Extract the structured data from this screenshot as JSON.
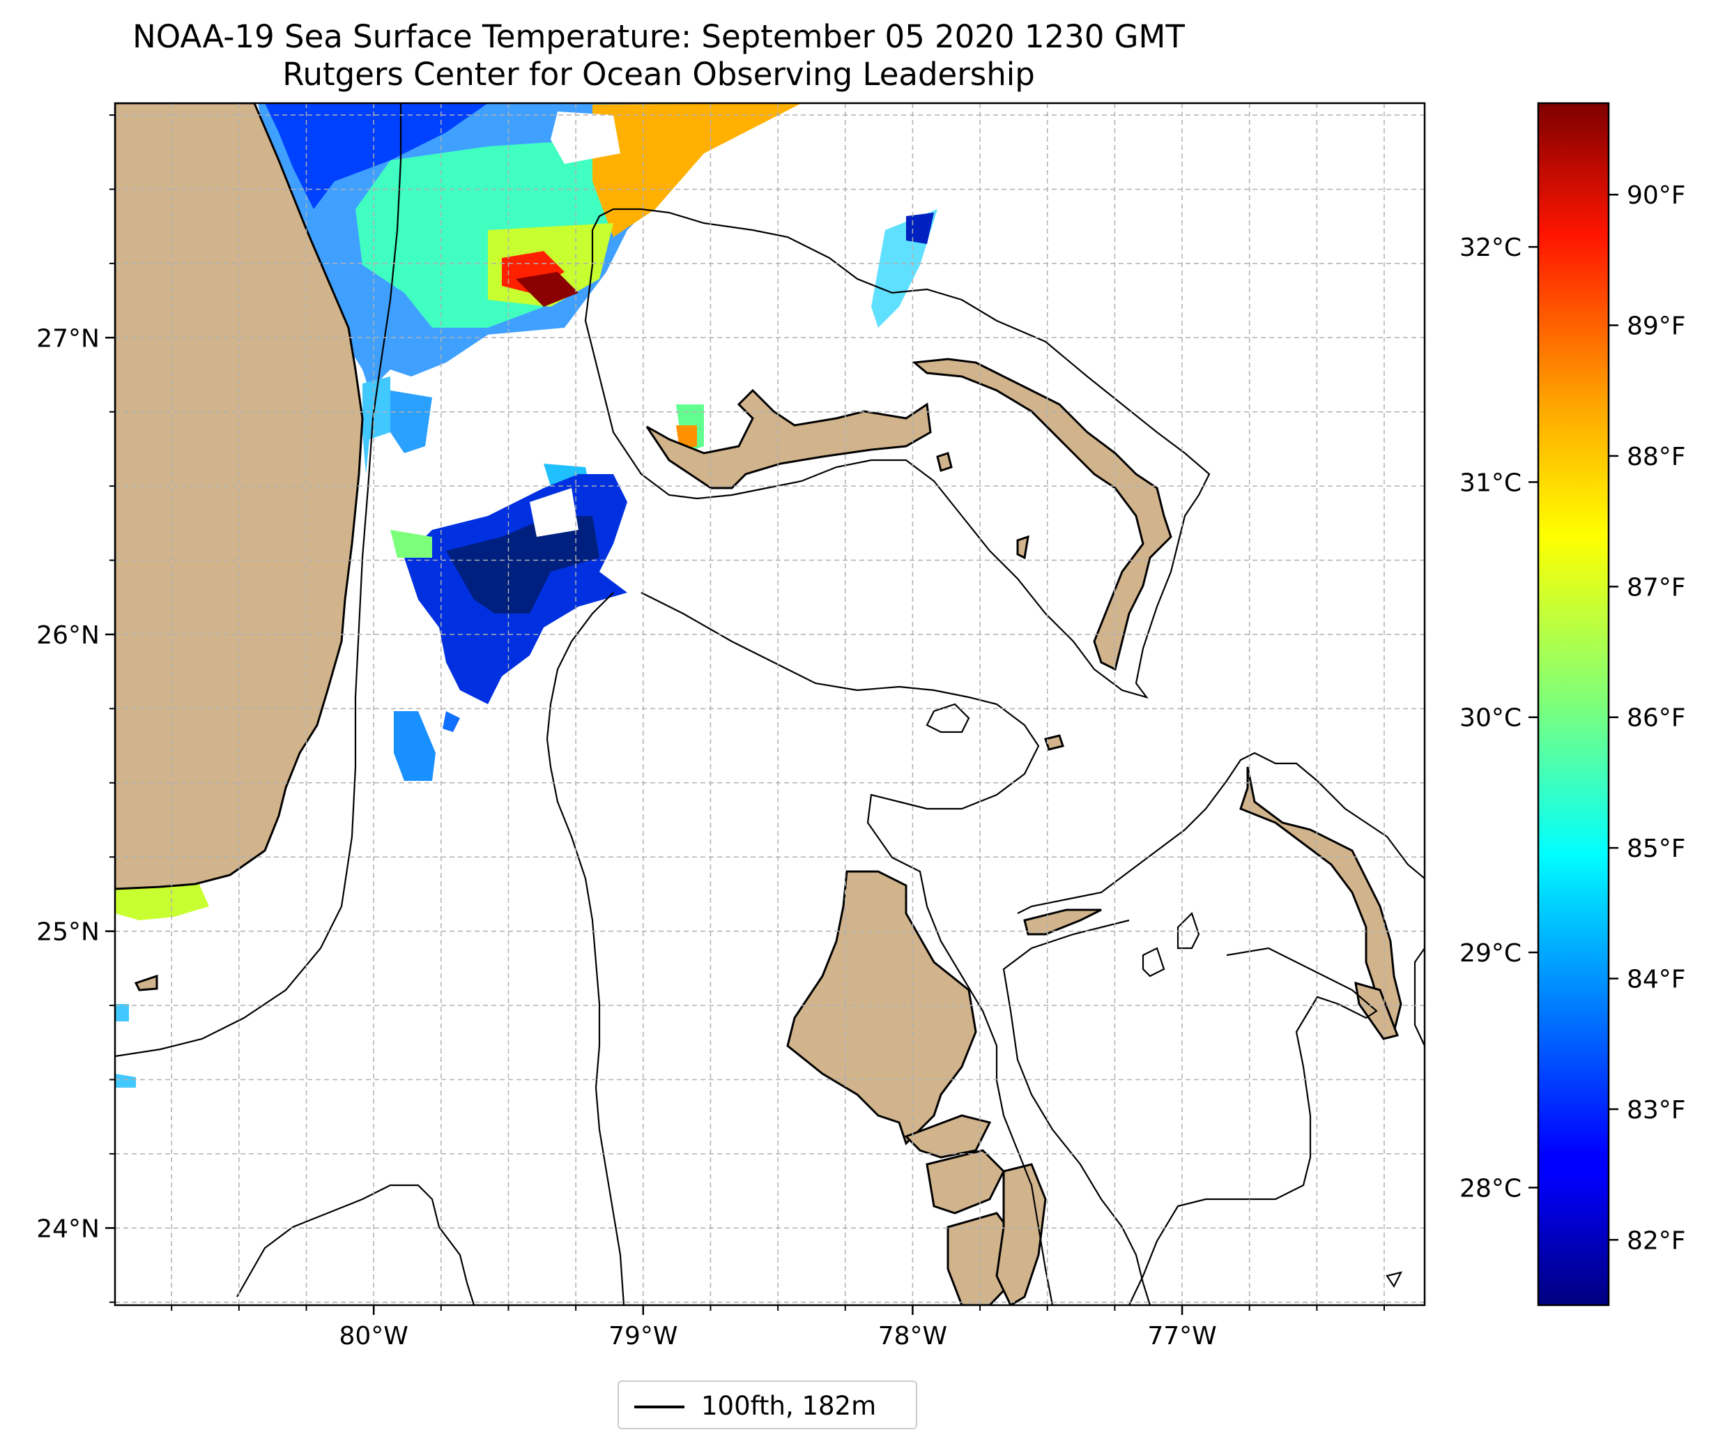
{
  "title": "NOAA-19 Sea Surface Temperature: September 05 2020 1230 GMT",
  "subtitle": "Rutgers Center for Ocean Observing Leadership",
  "map": {
    "lon_range": [
      -80.96,
      -76.1
    ],
    "lat_range": [
      23.74,
      27.79
    ],
    "lon_ticks": [
      {
        "value": -80,
        "label": "80°W"
      },
      {
        "value": -79,
        "label": "79°W"
      },
      {
        "value": -78,
        "label": "78°W"
      },
      {
        "value": -77,
        "label": "77°W"
      }
    ],
    "lat_ticks": [
      {
        "value": 27,
        "label": "27°N"
      },
      {
        "value": 26,
        "label": "26°N"
      },
      {
        "value": 25,
        "label": "25°N"
      },
      {
        "value": 24,
        "label": "24°N"
      }
    ],
    "gridlines": true,
    "land_color": "#d2b48c",
    "colormap": "jet"
  },
  "colorbar": {
    "range_f": [
      81.5,
      90.7
    ],
    "fahrenheit_ticks": [
      {
        "value": 82,
        "label": "82°F"
      },
      {
        "value": 83,
        "label": "83°F"
      },
      {
        "value": 84,
        "label": "84°F"
      },
      {
        "value": 85,
        "label": "85°F"
      },
      {
        "value": 86,
        "label": "86°F"
      },
      {
        "value": 87,
        "label": "87°F"
      },
      {
        "value": 88,
        "label": "88°F"
      },
      {
        "value": 89,
        "label": "89°F"
      },
      {
        "value": 90,
        "label": "90°F"
      }
    ],
    "celsius_ticks": [
      {
        "value": 28,
        "label": "28°C"
      },
      {
        "value": 29,
        "label": "29°C"
      },
      {
        "value": 30,
        "label": "30°C"
      },
      {
        "value": 31,
        "label": "31°C"
      },
      {
        "value": 32,
        "label": "32°C"
      }
    ]
  },
  "legend": {
    "label": "100fth, 182m",
    "color": "#000000"
  }
}
